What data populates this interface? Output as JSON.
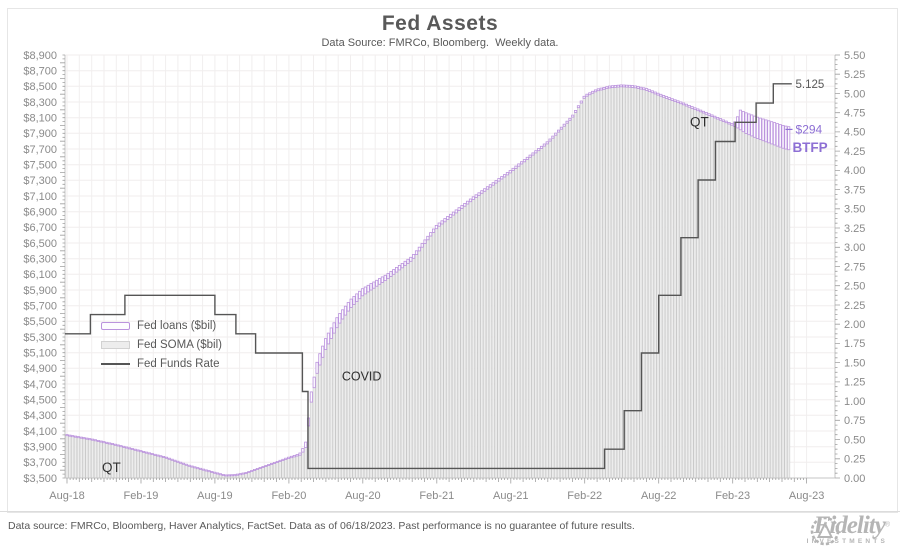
{
  "title": "Fed Assets",
  "subtitle": "Data Source: FMRCo, Bloomberg.  Weekly data.",
  "footer": {
    "disclaimer": "Data source: FMRCo, Bloomberg, Haver Analytics, FactSet. Data as of 06/18/2023. Past performance is no guarantee of future results."
  },
  "logo": {
    "brand": "Fidelity",
    "registered": "®",
    "sub": "INVESTMENTS"
  },
  "chart_data": {
    "type": "area",
    "description": "Weekly stacked bars of Fed SOMA holdings with Fed loans stacked on top (left $bil axis) and the Fed Funds Rate step line (right % axis), Aug-2018 to mid-Jun-2023.",
    "x_unit": "months since Aug-2018, data ends ~mid-Jun-2023 (month 58.55)",
    "x_tick_labels": [
      "Aug-18",
      "Feb-19",
      "Aug-19",
      "Feb-20",
      "Aug-20",
      "Feb-21",
      "Aug-21",
      "Feb-22",
      "Aug-22",
      "Feb-23",
      "Aug-23"
    ],
    "left_axis": {
      "min": 3500,
      "max": 8900,
      "step": 200,
      "format": "$#,##0",
      "labels": [
        "$8,900",
        "$8,700",
        "$8,500",
        "$8,300",
        "$8,100",
        "$7,900",
        "$7,700",
        "$7,500",
        "$7,300",
        "$7,100",
        "$6,900",
        "$6,700",
        "$6,500",
        "$6,300",
        "$6,100",
        "$5,900",
        "$5,700",
        "$5,500",
        "$5,300",
        "$5,100",
        "$4,900",
        "$4,700",
        "$4,500",
        "$4,300",
        "$4,100",
        "$3,900",
        "$3,700",
        "$3,500"
      ]
    },
    "right_axis": {
      "min": 0.0,
      "max": 5.5,
      "step": 0.25,
      "labels": [
        "5.50",
        "5.25",
        "5.00",
        "4.75",
        "4.50",
        "4.25",
        "4.00",
        "3.75",
        "3.50",
        "3.25",
        "3.00",
        "2.75",
        "2.50",
        "2.25",
        "2.00",
        "1.75",
        "1.50",
        "1.25",
        "1.00",
        "0.75",
        "0.50",
        "0.25",
        "0.00"
      ]
    },
    "series": [
      {
        "name": "Fed loans ($bil)",
        "type": "bar",
        "axis": "left",
        "stacked_on": "Fed SOMA ($bil)",
        "keypoints": [
          [
            0,
            14
          ],
          [
            17,
            14
          ],
          [
            18.8,
            20
          ],
          [
            19.3,
            60
          ],
          [
            19.8,
            130
          ],
          [
            20.5,
            145
          ],
          [
            21.5,
            135
          ],
          [
            22.5,
            115
          ],
          [
            24,
            90
          ],
          [
            26,
            65
          ],
          [
            28,
            50
          ],
          [
            30,
            42
          ],
          [
            33,
            34
          ],
          [
            36,
            30
          ],
          [
            40,
            26
          ],
          [
            44,
            24
          ],
          [
            48,
            24
          ],
          [
            52,
            22
          ],
          [
            54,
            20
          ],
          [
            54.3,
            90
          ],
          [
            54.6,
            250
          ],
          [
            55,
            262
          ],
          [
            55.5,
            268
          ],
          [
            56,
            272
          ],
          [
            57,
            282
          ],
          [
            58,
            290
          ],
          [
            58.55,
            294
          ]
        ]
      },
      {
        "name": "Fed SOMA ($bil)",
        "type": "bar",
        "axis": "left",
        "keypoints": [
          [
            0,
            4040
          ],
          [
            2,
            3985
          ],
          [
            4,
            3915
          ],
          [
            6,
            3835
          ],
          [
            8,
            3755
          ],
          [
            10,
            3645
          ],
          [
            12,
            3560
          ],
          [
            12.8,
            3525
          ],
          [
            13.6,
            3530
          ],
          [
            14.5,
            3555
          ],
          [
            16,
            3640
          ],
          [
            18,
            3750
          ],
          [
            19,
            3795
          ],
          [
            19.4,
            3900
          ],
          [
            19.8,
            4450
          ],
          [
            20.3,
            4850
          ],
          [
            21,
            5150
          ],
          [
            22,
            5450
          ],
          [
            23,
            5670
          ],
          [
            24,
            5830
          ],
          [
            26,
            6040
          ],
          [
            28,
            6280
          ],
          [
            30,
            6690
          ],
          [
            33,
            7060
          ],
          [
            36,
            7400
          ],
          [
            39,
            7770
          ],
          [
            41,
            8100
          ],
          [
            42,
            8360
          ],
          [
            43,
            8440
          ],
          [
            44,
            8480
          ],
          [
            45,
            8495
          ],
          [
            46,
            8485
          ],
          [
            47,
            8450
          ],
          [
            48,
            8385
          ],
          [
            50,
            8265
          ],
          [
            52,
            8135
          ],
          [
            54,
            8000
          ],
          [
            54.5,
            7960
          ],
          [
            55,
            7905
          ],
          [
            56,
            7835
          ],
          [
            57,
            7775
          ],
          [
            58,
            7715
          ],
          [
            58.55,
            7690
          ]
        ]
      },
      {
        "name": "Fed Funds Rate",
        "type": "step-line",
        "axis": "right",
        "end_month": 58.8,
        "end_value_label": "5.125",
        "steps": [
          [
            -0.2,
            1.875
          ],
          [
            1.9,
            2.125
          ],
          [
            4.7,
            2.375
          ],
          [
            12.0,
            2.125
          ],
          [
            13.7,
            1.875
          ],
          [
            15.3,
            1.625
          ],
          [
            19.1,
            1.125
          ],
          [
            19.55,
            0.125
          ],
          [
            43.6,
            0.375
          ],
          [
            45.2,
            0.875
          ],
          [
            46.6,
            1.625
          ],
          [
            48.0,
            2.375
          ],
          [
            49.8,
            3.125
          ],
          [
            51.2,
            3.875
          ],
          [
            52.6,
            4.375
          ],
          [
            54.2,
            4.625
          ],
          [
            55.9,
            4.875
          ],
          [
            57.3,
            5.125
          ]
        ]
      }
    ],
    "annotations": [
      {
        "id": "qt-left",
        "text": "QT",
        "month": 3.6,
        "value": 3640,
        "axis": "left",
        "align": "middle",
        "color": "#333333",
        "size": 13.5,
        "bold": false
      },
      {
        "id": "covid",
        "text": "COVID",
        "month": 23.9,
        "value": 4800,
        "axis": "left",
        "align": "middle",
        "color": "#2e2e2e",
        "size": 12.5,
        "bold": false
      },
      {
        "id": "qt-right",
        "text": "QT",
        "month": 51.3,
        "value": 8050,
        "axis": "left",
        "align": "middle",
        "color": "#2e2e2e",
        "size": 13.5,
        "bold": false
      },
      {
        "id": "rate-end",
        "text": "5.125",
        "month": 59.1,
        "value": 5.125,
        "axis": "right",
        "align": "start",
        "color": "#595959",
        "size": 11.5,
        "bold": false
      },
      {
        "id": "loans-end",
        "text": "$294",
        "month": 59.1,
        "value": 7950,
        "axis": "left",
        "align": "start",
        "color": "#8d6fd4",
        "size": 12,
        "bold": false,
        "leader": true
      },
      {
        "id": "btfp",
        "text": "BTFP",
        "month": 58.85,
        "value": 7720,
        "axis": "left",
        "align": "start",
        "color": "#8d6fd4",
        "size": 13.5,
        "bold": true
      }
    ],
    "colors": {
      "loans_stroke": "#bb93dd",
      "loans_fill": "#fdfcff",
      "loans_text": "#8d6fd4",
      "soma_fill": "#ededed",
      "soma_stroke": "#c9c9c9",
      "rate_line": "#555555",
      "grid": "#f1eeee",
      "axis_line": "#c4c4c4",
      "tick": "#a0a0a0",
      "label": "#8a8a8a",
      "title": "#595959"
    },
    "legend_position": "inside-left-middle",
    "grid": "faint monthly vertical and 200/0.25 horizontal lines"
  }
}
